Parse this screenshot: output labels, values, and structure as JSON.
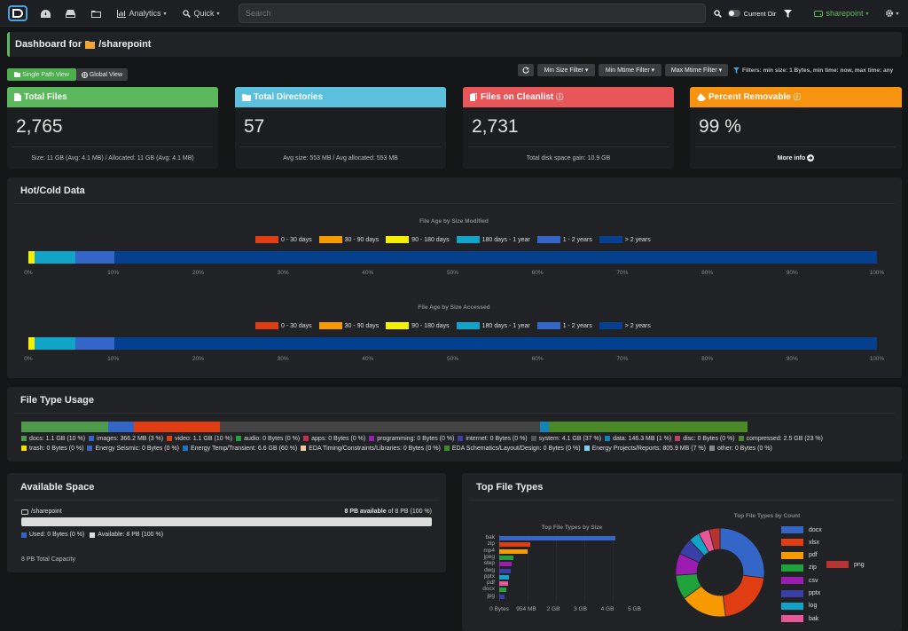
{
  "nav": {
    "analytics": "Analytics",
    "quick": "Quick",
    "search_placeholder": "Search",
    "current_dir": "Current Dir",
    "index": "sharepoint"
  },
  "header": {
    "title": "Dashboard for",
    "path": "/sharepoint"
  },
  "views": {
    "single": "Single Path View",
    "global": "Global View"
  },
  "filters": {
    "min_size": "Min Size Filter",
    "min_mtime": "Min Mtime Filter",
    "max_mtime": "Max Mtime Filter",
    "text": "Filters: min size: 1 Bytes, min time: now, max time: any"
  },
  "cards": [
    {
      "title": "Total Files",
      "value": "2,765",
      "footer": "Size: 11 GB (Avg: 4.1 MB) / Allocated: 11 GB (Avg: 4.1 MB)",
      "color": "#5cb85c"
    },
    {
      "title": "Total Directories",
      "value": "57",
      "footer": "Avg size: 553 MB / Avg allocated: 553 MB",
      "color": "#5bc0de"
    },
    {
      "title": "Files on Cleanlist",
      "value": "2,731",
      "footer": "Total disk space gain: 10.9 GB",
      "color": "#e9565a"
    },
    {
      "title": "Percent Removable",
      "value": "99 %",
      "footer": "More info",
      "color": "#f7930e"
    }
  ],
  "hotcold": {
    "title": "Hot/Cold Data",
    "chart_modified": "File Age by Size Modified",
    "chart_accessed": "File Age by Size Accessed",
    "legend": [
      {
        "label": "0 - 30 days",
        "color": "#e03e12"
      },
      {
        "label": "30 - 90 days",
        "color": "#f79a00"
      },
      {
        "label": "90 - 180 days",
        "color": "#f3f000"
      },
      {
        "label": "180 days - 1 year",
        "color": "#10a4c9"
      },
      {
        "label": "1 - 2 years",
        "color": "#3466c8"
      },
      {
        "label": "> 2 years",
        "color": "#05408e"
      }
    ],
    "ticks": [
      "0%",
      "10%",
      "20%",
      "30%",
      "40%",
      "50%",
      "60%",
      "70%",
      "80%",
      "90%",
      "100%"
    ]
  },
  "chart_data": [
    {
      "type": "bar",
      "title": "File Age by Size Modified",
      "orientation": "horizontal-stacked",
      "x_unit": "percent",
      "xlim": [
        0,
        100
      ],
      "series": [
        {
          "name": "0 - 30 days",
          "values": [
            0
          ]
        },
        {
          "name": "30 - 90 days",
          "values": [
            0
          ]
        },
        {
          "name": "90 - 180 days",
          "values": [
            0.7
          ]
        },
        {
          "name": "180 days - 1 year",
          "values": [
            4.8
          ]
        },
        {
          "name": "1 - 2 years",
          "values": [
            4.6
          ]
        },
        {
          "name": "> 2 years",
          "values": [
            89.9
          ]
        }
      ]
    },
    {
      "type": "bar",
      "title": "File Age by Size Accessed",
      "orientation": "horizontal-stacked",
      "x_unit": "percent",
      "xlim": [
        0,
        100
      ],
      "series": [
        {
          "name": "0 - 30 days",
          "values": [
            0
          ]
        },
        {
          "name": "30 - 90 days",
          "values": [
            0
          ]
        },
        {
          "name": "90 - 180 days",
          "values": [
            0.7
          ]
        },
        {
          "name": "180 days - 1 year",
          "values": [
            4.8
          ]
        },
        {
          "name": "1 - 2 years",
          "values": [
            4.6
          ]
        },
        {
          "name": "> 2 years",
          "values": [
            89.9
          ]
        }
      ]
    },
    {
      "type": "bar",
      "title": "Top File Types by Size",
      "orientation": "horizontal",
      "categories": [
        "bak",
        "zip",
        "mp4",
        "jpeg",
        "step",
        "dwg",
        "pptx",
        "pdf",
        "docx",
        "jpg"
      ],
      "values_gb": [
        4.1,
        1.1,
        1.0,
        0.5,
        0.45,
        0.4,
        0.35,
        0.3,
        0.25,
        0.2
      ],
      "ticks": [
        "0 Bytes",
        "954 MB",
        "2 GB",
        "3 GB",
        "4 GB",
        "5 GB"
      ],
      "xlim": [
        0,
        5
      ]
    },
    {
      "type": "pie",
      "title": "Top File Types by Count",
      "categories": [
        "docx",
        "xlsx",
        "pdf",
        "zip",
        "csv",
        "pptx",
        "log",
        "bak",
        "png"
      ],
      "values": [
        27,
        21,
        17,
        9,
        8,
        6,
        4,
        4,
        4
      ],
      "colors": [
        "#3466c8",
        "#e03e12",
        "#f79a00",
        "#1fa23a",
        "#9b1cb0",
        "#3a3fa8",
        "#10a4c9",
        "#e8569a",
        "#b53331"
      ]
    }
  ],
  "filetype": {
    "title": "File Type Usage",
    "bar": [
      {
        "pct": 10,
        "color": "#4f9a4c"
      },
      {
        "pct": 3,
        "color": "#3466c8"
      },
      {
        "pct": 10,
        "color": "#e03e12"
      },
      {
        "pct": 37,
        "color": "#444"
      },
      {
        "pct": 1,
        "color": "#1184b8"
      },
      {
        "pct": 23,
        "color": "#4a8a26"
      }
    ],
    "legend": [
      {
        "label": "docs: 1.1 GB (10 %)",
        "color": "#4f9a4c"
      },
      {
        "label": "images: 366.2 MB (3 %)",
        "color": "#3466c8"
      },
      {
        "label": "video: 1.1 GB (10 %)",
        "color": "#e03e12"
      },
      {
        "label": "audio: 0 Bytes (0 %)",
        "color": "#1fa23a"
      },
      {
        "label": "apps: 0 Bytes (0 %)",
        "color": "#c0314a"
      },
      {
        "label": "programming: 0 Bytes (0 %)",
        "color": "#9b1cb0"
      },
      {
        "label": "internet: 0 Bytes (0 %)",
        "color": "#3a3fa8"
      },
      {
        "label": "system: 4.1 GB (37 %)",
        "color": "#555"
      },
      {
        "label": "data: 146.3 MB (1 %)",
        "color": "#1184b8"
      },
      {
        "label": "disc: 0 Bytes (0 %)",
        "color": "#c04060"
      },
      {
        "label": "compressed: 2.5 GB (23 %)",
        "color": "#4a8a26"
      },
      {
        "label": "trash: 0 Bytes (0 %)",
        "color": "#f3e000"
      },
      {
        "label": "Energy Seismic: 0 Bytes (0 %)",
        "color": "#3a66b8"
      },
      {
        "label": "Energy Temp/Transient: 6.6 GB (60 %)",
        "color": "#1a74c4"
      },
      {
        "label": "EDA Timing/Constraints/Libraries: 0 Bytes (0 %)",
        "color": "#e6caa0"
      },
      {
        "label": "EDA Schematics/Layout/Design: 0 Bytes (0 %)",
        "color": "#3a8a2a"
      },
      {
        "label": "Energy Projects/Reports: 805.9 MB (7 %)",
        "color": "#7fd0e8"
      },
      {
        "label": "other: 0 Bytes (0 %)",
        "color": "#888"
      }
    ]
  },
  "space": {
    "title": "Available Space",
    "path": "/sharepoint",
    "avail_strong": "8 PB available",
    "avail_rest": "of 8 PB (100 %)",
    "used": "Used: 0 Bytes (0 %)",
    "available": "Available: 8 PB (100 %)",
    "total": "8 PB Total Capacity",
    "used_fraction": 0
  },
  "toptypes": {
    "title": "Top File Types",
    "bar_title": "Top File Types by Size",
    "pie_title": "Top File Types by Count"
  }
}
